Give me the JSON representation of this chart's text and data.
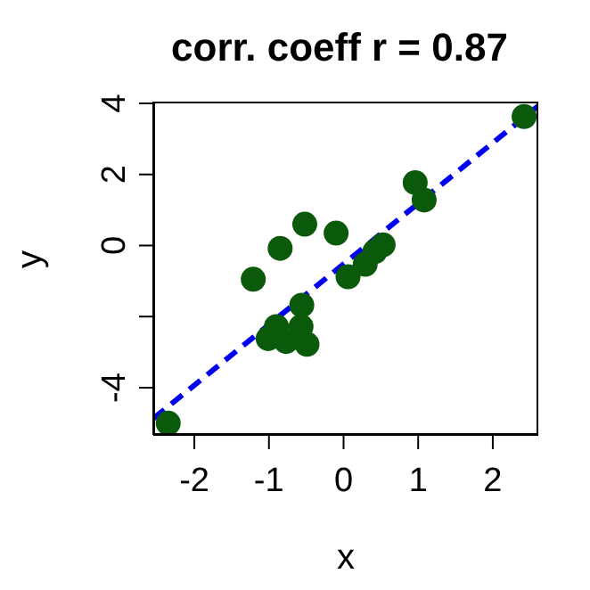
{
  "chart_data": {
    "type": "scatter",
    "title": "corr. coeff r = 0.87",
    "xlabel": "x",
    "ylabel": "y",
    "xlim": [
      -2.55,
      2.61
    ],
    "ylim": [
      -5.33,
      4.05
    ],
    "xticks": [
      -2,
      -1,
      0,
      1,
      2
    ],
    "yticks": [
      -4,
      {
        "value": -2,
        "label": null
      },
      0,
      2,
      4
    ],
    "series": [
      {
        "marker": "circle",
        "color": "#0b5a0b",
        "x": [
          -2.35,
          2.42,
          0.96,
          1.08,
          -0.52,
          -0.1,
          -0.85,
          -1.21,
          0.06,
          0.29,
          0.42,
          0.53,
          -0.56,
          -0.9,
          -1.01,
          -0.77,
          -0.57,
          -0.49
        ],
        "values": [
          -5.0,
          3.63,
          1.77,
          1.28,
          0.6,
          0.35,
          -0.08,
          -0.95,
          -0.88,
          -0.53,
          -0.17,
          0.02,
          -1.68,
          -2.28,
          -2.62,
          -2.7,
          -2.28,
          -2.78
        ]
      },
      {
        "type": "line",
        "color": "#0000ee",
        "line_style": "dashed",
        "x": [
          -2.55,
          2.61
        ],
        "values": [
          -4.87,
          3.93
        ]
      }
    ]
  }
}
